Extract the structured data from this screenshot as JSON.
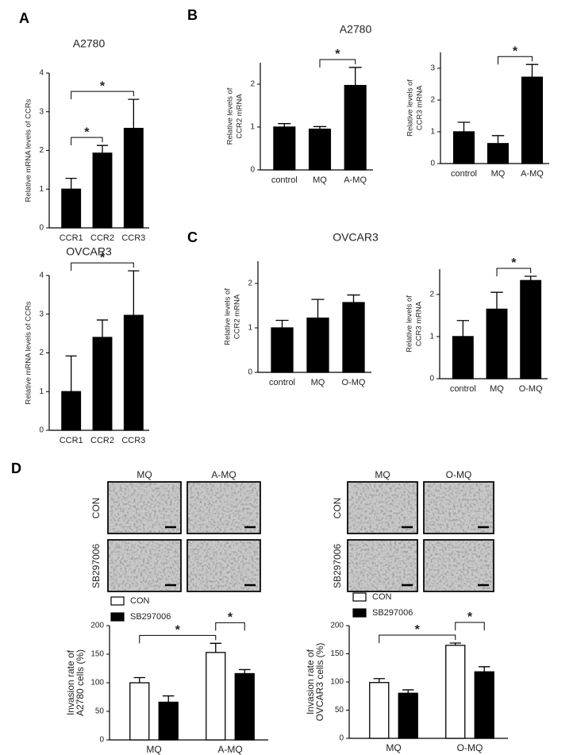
{
  "panel_labels": [
    "A",
    "B",
    "C",
    "D"
  ],
  "micrographs": [
    {
      "columns": [
        "MQ",
        "A-MQ"
      ],
      "rows": [
        "CON",
        "SB297006"
      ]
    },
    {
      "columns": [
        "MQ",
        "O-MQ"
      ],
      "rows": [
        "CON",
        "SB297006"
      ]
    }
  ],
  "chart_data": [
    {
      "type": "bar",
      "title": "A2780",
      "ylabel": [
        "Relative mRNA levels of CCRs"
      ],
      "categories": [
        "CCR1",
        "CCR2",
        "CCR3"
      ],
      "values": [
        1.0,
        1.93,
        2.57
      ],
      "errors": [
        0.28,
        0.2,
        0.75
      ],
      "color": "#000000",
      "ylim": [
        0,
        4
      ],
      "yticks": [
        0,
        1,
        2,
        3,
        4
      ],
      "annotations": [
        {
          "text": "*",
          "from": "CCR1",
          "to": "CCR2"
        },
        {
          "text": "*",
          "from": "CCR1",
          "to": "CCR3"
        }
      ]
    },
    {
      "type": "bar",
      "title": "OVCAR3",
      "ylabel": [
        "Relative mRNA levels of CCRs"
      ],
      "categories": [
        "CCR1",
        "CCR2",
        "CCR3"
      ],
      "values": [
        1.0,
        2.4,
        2.97
      ],
      "errors": [
        0.92,
        0.45,
        1.15
      ],
      "color": "#000000",
      "ylim": [
        0,
        4
      ],
      "yticks": [
        0,
        1,
        2,
        3,
        4
      ],
      "annotations": [
        {
          "text": "*",
          "from": "CCR1",
          "to": "CCR3"
        }
      ]
    },
    {
      "type": "bar",
      "title": "A2780",
      "ylabel": [
        "Relative levels of",
        "CCR2 mRNA"
      ],
      "categories": [
        "control",
        "MQ",
        "A-MQ"
      ],
      "values": [
        1.0,
        0.95,
        1.97
      ],
      "errors": [
        0.08,
        0.06,
        0.42
      ],
      "color": "#000000",
      "ylim": [
        0,
        2.5
      ],
      "yticks": [
        0,
        1,
        2
      ],
      "annotations": [
        {
          "text": "*",
          "from": "MQ",
          "to": "A-MQ"
        }
      ]
    },
    {
      "type": "bar",
      "ylabel": [
        "Relative  levels of",
        "CCR3 mRNA"
      ],
      "categories": [
        "control",
        "MQ",
        "A-MQ"
      ],
      "values": [
        1.0,
        0.63,
        2.72
      ],
      "errors": [
        0.3,
        0.25,
        0.4
      ],
      "color": "#000000",
      "ylim": [
        0,
        3.5
      ],
      "yticks": [
        0,
        1,
        2,
        3
      ],
      "annotations": [
        {
          "text": "*",
          "from": "MQ",
          "to": "A-MQ"
        }
      ]
    },
    {
      "type": "bar",
      "title": "OVCAR3",
      "ylabel": [
        "Relative levels of",
        "CCR2 mRNA"
      ],
      "categories": [
        "control",
        "MQ",
        "O-MQ"
      ],
      "values": [
        1.0,
        1.22,
        1.57
      ],
      "errors": [
        0.17,
        0.42,
        0.17
      ],
      "color": "#000000",
      "ylim": [
        0,
        2.5
      ],
      "yticks": [
        0,
        1,
        2
      ]
    },
    {
      "type": "bar",
      "ylabel": [
        "Relative levels of",
        "CCR3 mRNA"
      ],
      "categories": [
        "control",
        "MQ",
        "O-MQ"
      ],
      "values": [
        1.0,
        1.65,
        2.33
      ],
      "errors": [
        0.38,
        0.4,
        0.1
      ],
      "color": "#000000",
      "ylim": [
        0,
        2.6
      ],
      "yticks": [
        0,
        1,
        2
      ],
      "annotations": [
        {
          "text": "*",
          "from": "MQ",
          "to": "O-MQ"
        }
      ]
    },
    {
      "type": "grouped-bar",
      "ylabel": [
        "Invasion rate of",
        "A2780 cells (%)"
      ],
      "categories": [
        "MQ",
        "A-MQ"
      ],
      "series": [
        {
          "name": "CON",
          "color": "#ffffff",
          "values": [
            100,
            153
          ],
          "errors": [
            9,
            16
          ]
        },
        {
          "name": "SB297006",
          "color": "#000000",
          "values": [
            66,
            116
          ],
          "errors": [
            11,
            7
          ]
        }
      ],
      "ylim": [
        0,
        200
      ],
      "yticks": [
        0,
        50,
        100,
        150,
        200
      ],
      "annotations": [
        {
          "text": "*",
          "from": [
            "MQ",
            "CON"
          ],
          "to": [
            "A-MQ",
            "CON"
          ]
        },
        {
          "text": "*",
          "from": [
            "A-MQ",
            "CON"
          ],
          "to": [
            "A-MQ",
            "SB297006"
          ]
        }
      ]
    },
    {
      "type": "grouped-bar",
      "ylabel": [
        "Invasion rate of",
        "OVCAR3 cells (%)"
      ],
      "categories": [
        "MQ",
        "O-MQ"
      ],
      "series": [
        {
          "name": "CON",
          "color": "#ffffff",
          "values": [
            99,
            165
          ],
          "errors": [
            7,
            4
          ]
        },
        {
          "name": "SB297006",
          "color": "#000000",
          "values": [
            80,
            118
          ],
          "errors": [
            6,
            9
          ]
        }
      ],
      "ylim": [
        0,
        200
      ],
      "yticks": [
        0,
        50,
        100,
        150,
        200
      ],
      "annotations": [
        {
          "text": "*",
          "from": [
            "MQ",
            "CON"
          ],
          "to": [
            "O-MQ",
            "CON"
          ]
        },
        {
          "text": "*",
          "from": [
            "O-MQ",
            "CON"
          ],
          "to": [
            "O-MQ",
            "SB297006"
          ]
        }
      ]
    }
  ]
}
